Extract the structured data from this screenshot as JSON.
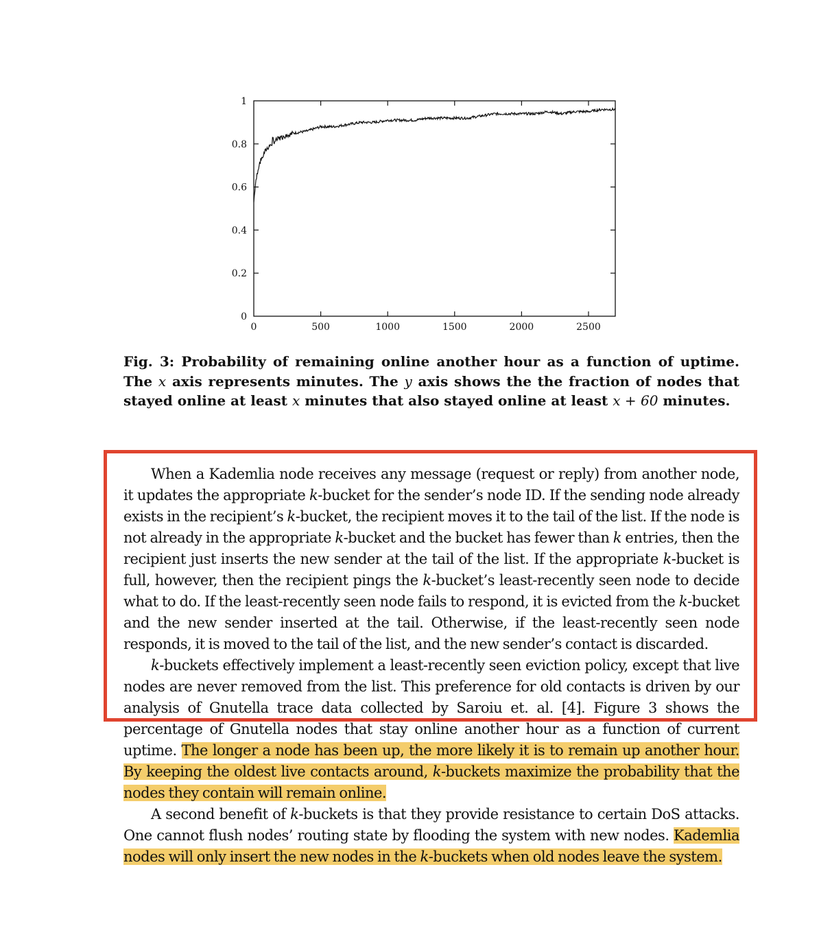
{
  "chart_data": {
    "type": "line",
    "x_ticks": [
      "0",
      "500",
      "1000",
      "1500",
      "2000",
      "2500"
    ],
    "y_ticks": [
      "0",
      "0.2",
      "0.4",
      "0.6",
      "0.8",
      "1"
    ],
    "xlim": [
      0,
      2700
    ],
    "ylim": [
      0,
      1
    ],
    "grid": false,
    "series": [
      {
        "x": [
          0,
          10,
          20,
          30,
          50,
          80,
          100,
          150,
          200,
          250,
          300,
          400,
          500,
          600,
          700,
          800,
          900,
          1000,
          1100,
          1200,
          1300,
          1400,
          1500,
          1600,
          1700,
          1800,
          1900,
          2000,
          2100,
          2200,
          2300,
          2400,
          2500,
          2600,
          2700
        ],
        "y": [
          0.53,
          0.6,
          0.64,
          0.68,
          0.72,
          0.76,
          0.78,
          0.81,
          0.83,
          0.84,
          0.85,
          0.86,
          0.88,
          0.88,
          0.89,
          0.9,
          0.9,
          0.91,
          0.91,
          0.91,
          0.92,
          0.92,
          0.92,
          0.92,
          0.93,
          0.94,
          0.94,
          0.94,
          0.94,
          0.95,
          0.94,
          0.95,
          0.95,
          0.96,
          0.96
        ]
      }
    ]
  },
  "caption": {
    "label": "Fig. 3:",
    "line1": " Probability of remaining online another hour as a function of uptime. The ",
    "var_x1": "x",
    "line2": " axis represents minutes. The ",
    "var_y": "y",
    "line3": " axis shows the the fraction of nodes that stayed online at least ",
    "var_x2": "x",
    "line4": " minutes that also stayed online at least ",
    "expr": "x + 60",
    "line5": " minutes."
  },
  "paragraphs": {
    "p1": {
      "t1": "When a Kademlia node receives any message (request or reply) from another node, it updates the appropriate ",
      "k1": "k",
      "t2": "-bucket for the sender’s node ID. If the sending node already exists in the recipient’s ",
      "k2": "k",
      "t3": "-bucket, the recipient moves it to the tail of the list. If the node is not already in the appropriate ",
      "k3": "k",
      "t4": "-bucket and the bucket has fewer than ",
      "k4": "k",
      "t5": " entries, then the recipient just inserts the new sender at the tail of the list. If the appropriate ",
      "k5": "k",
      "t6": "-bucket is full, however, then the recipient pings the ",
      "k6": "k",
      "t7": "-bucket’s least-recently seen node to decide what to do. If the least-recently seen node fails to respond, it is evicted from the ",
      "k7": "k",
      "t8": "-bucket and the new sender inserted at the tail. Otherwise, if the least-recently seen node responds, it is moved to the tail of the list, and the new sender’s contact is discarded."
    },
    "p2": {
      "k1": "k",
      "t1": "-buckets effectively implement a least-recently seen eviction policy, except that live nodes are never removed from the list. This preference for old contacts is driven by our analysis of Gnutella trace data collected by Saroiu et. al. [4]. Figure 3 shows the percentage of Gnutella nodes that stay online another hour as a function of current uptime. ",
      "h1": "The longer a node has been up, the more likely it is to remain up another hour.",
      "t2": " ",
      "h2a": "By keeping the oldest live contacts around, ",
      "k2": "k",
      "h2b": "-buckets maximize the probability that the nodes they contain will remain online."
    },
    "p3": {
      "t1": "A second benefit of ",
      "k1": "k",
      "t2": "-buckets is that they provide resistance to certain DoS attacks. One cannot flush nodes’ routing state by flooding the system with new nodes. ",
      "h1a": "Kademlia nodes will only insert the new nodes in the ",
      "k2": "k",
      "h1b": "-buckets when old nodes leave the system."
    }
  },
  "colors": {
    "highlight": "#f4cd6c",
    "annotation_box": "#e0442f",
    "text": "#111111"
  }
}
